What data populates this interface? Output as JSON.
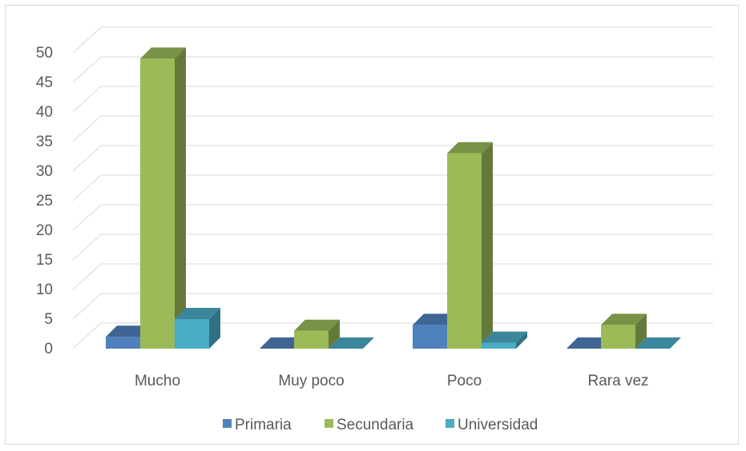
{
  "chart_data": {
    "type": "bar",
    "title": "",
    "xlabel": "",
    "ylabel": "",
    "ylim": [
      0,
      50
    ],
    "yticks": [
      0,
      5,
      10,
      15,
      20,
      25,
      30,
      35,
      40,
      45,
      50
    ],
    "categories": [
      "Mucho",
      "Muy poco",
      "Poco",
      "Rara vez"
    ],
    "series": [
      {
        "name": "Primaria",
        "values": [
          2,
          0,
          4,
          0
        ],
        "color": "#4f81bd"
      },
      {
        "name": "Secundaria",
        "values": [
          49,
          3,
          33,
          4
        ],
        "color": "#9bbb59"
      },
      {
        "name": "Universidad",
        "values": [
          5,
          0,
          1,
          0
        ],
        "color": "#4bacc6"
      }
    ],
    "grid": true,
    "legend_position": "bottom",
    "style": "3d-clustered-column"
  }
}
